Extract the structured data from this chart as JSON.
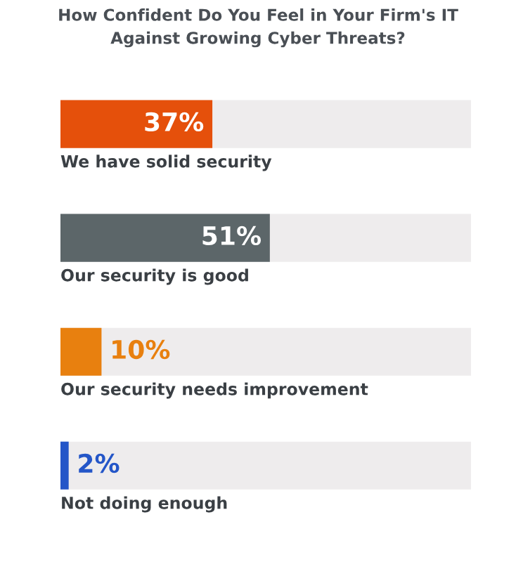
{
  "chart_data": {
    "type": "bar",
    "orientation": "horizontal",
    "title": "How Confident Do You Feel in Your Firm's IT\nAgainst Growing Cyber Threats?",
    "categories": [
      "We have solid security",
      "Our security is good",
      "Our security needs improvement",
      "Not doing enough"
    ],
    "values": [
      37,
      51,
      10,
      2
    ],
    "colors": [
      "#e5500b",
      "#5c6669",
      "#e8800f",
      "#2456c8"
    ],
    "value_labels": [
      "37%",
      "51%",
      "10%",
      "2%"
    ],
    "xlim": [
      0,
      100
    ]
  }
}
